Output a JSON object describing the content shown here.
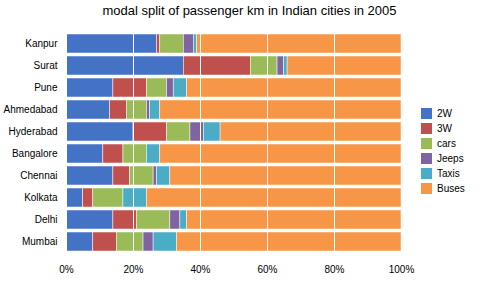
{
  "chart_data": {
    "type": "bar",
    "orientation": "horizontal",
    "stacked": true,
    "title": "modal split of passenger km in Indian cities in 2005",
    "categories": [
      "Kanpur",
      "Surat",
      "Pune",
      "Ahmedabad",
      "Hyderabad",
      "Bangalore",
      "Chennai",
      "Kolkata",
      "Delhi",
      "Mumbai"
    ],
    "series": [
      {
        "name": "2W",
        "color": "#4472C4",
        "values": [
          0.27,
          0.35,
          0.14,
          0.13,
          0.2,
          0.11,
          0.14,
          0.05,
          0.14,
          0.08
        ]
      },
      {
        "name": "3W",
        "color": "#C0504D",
        "values": [
          0.01,
          0.2,
          0.1,
          0.05,
          0.1,
          0.06,
          0.05,
          0.03,
          0.07,
          0.07
        ]
      },
      {
        "name": "cars",
        "color": "#9BBB59",
        "values": [
          0.07,
          0.08,
          0.06,
          0.06,
          0.07,
          0.07,
          0.07,
          0.09,
          0.1,
          0.08
        ]
      },
      {
        "name": "Jeeps",
        "color": "#8064A2",
        "values": [
          0.03,
          0.02,
          0.02,
          0.01,
          0.04,
          0.0,
          0.01,
          0.0,
          0.03,
          0.03
        ]
      },
      {
        "name": "Taxis",
        "color": "#4BACC6",
        "values": [
          0.01,
          0.01,
          0.04,
          0.03,
          0.05,
          0.04,
          0.04,
          0.07,
          0.02,
          0.07
        ]
      },
      {
        "name": "Buses",
        "color": "#F79646",
        "values": [
          0.61,
          0.34,
          0.64,
          0.72,
          0.54,
          0.72,
          0.69,
          0.76,
          0.64,
          0.67
        ]
      }
    ],
    "xlim": [
      0,
      1.0
    ],
    "xticks": [
      {
        "value": 0,
        "label": "0%"
      },
      {
        "value": 0.2,
        "label": "20%"
      },
      {
        "value": 0.4,
        "label": "40%"
      },
      {
        "value": 0.6,
        "label": "60%"
      },
      {
        "value": 0.8,
        "label": "80%"
      },
      {
        "value": 1.0,
        "label": "100%"
      }
    ],
    "grid": true,
    "legend": "right"
  }
}
